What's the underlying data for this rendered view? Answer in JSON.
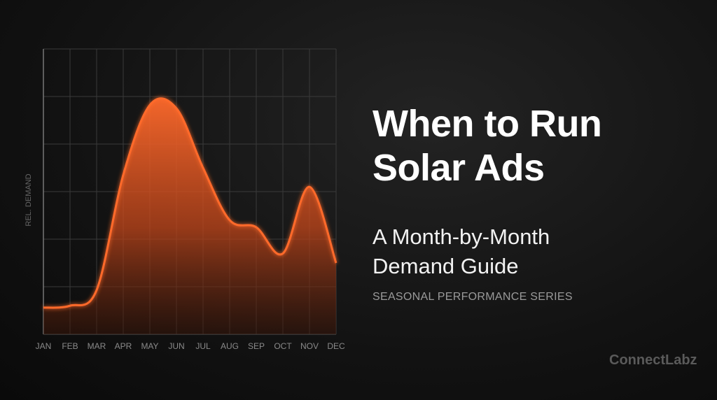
{
  "chart_data": {
    "type": "area",
    "title": "When to Run Solar Ads",
    "subtitle": "A Month-by-Month Demand Guide",
    "series_label": "SEASONAL PERFORMANCE SERIES",
    "brand": "ConnectLabz",
    "y_label": "REL. DEMAND",
    "categories": [
      "JAN",
      "FEB",
      "MAR",
      "APR",
      "MAY",
      "JUN",
      "JUL",
      "AUG",
      "SEP",
      "OCT",
      "NOV",
      "DEC"
    ],
    "values": [
      0.56,
      0.6,
      0.93,
      3.35,
      4.82,
      4.75,
      3.5,
      2.4,
      2.25,
      1.7,
      3.1,
      1.5
    ],
    "color": "#ff6a2c",
    "ylim": [
      0,
      6
    ],
    "yticks": [
      0,
      1,
      2,
      3,
      4,
      5,
      6
    ],
    "grid": true
  }
}
